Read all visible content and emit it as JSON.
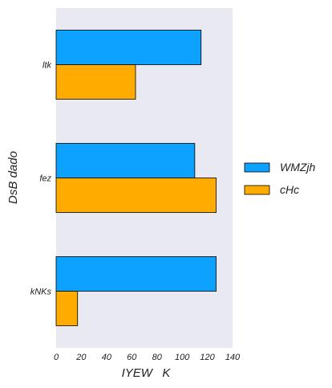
{
  "chart_data": {
    "type": "bar",
    "orientation": "horizontal",
    "categories": [
      "ltk",
      "fez",
      "kNKs"
    ],
    "series": [
      {
        "name": "WMZjh",
        "values": [
          115,
          110,
          127
        ],
        "color": "#0da2ff"
      },
      {
        "name": "cHc",
        "values": [
          63,
          127,
          17
        ],
        "color": "#ffab00"
      }
    ],
    "xlabel": "IYEW   K",
    "ylabel": "DsB dado",
    "xlim": [
      0,
      140
    ],
    "xticks": [
      "0",
      "20",
      "40",
      "60",
      "80",
      "100",
      "120",
      "140"
    ],
    "background": "#e9e9f2",
    "grid": false,
    "legend_position": "right"
  }
}
